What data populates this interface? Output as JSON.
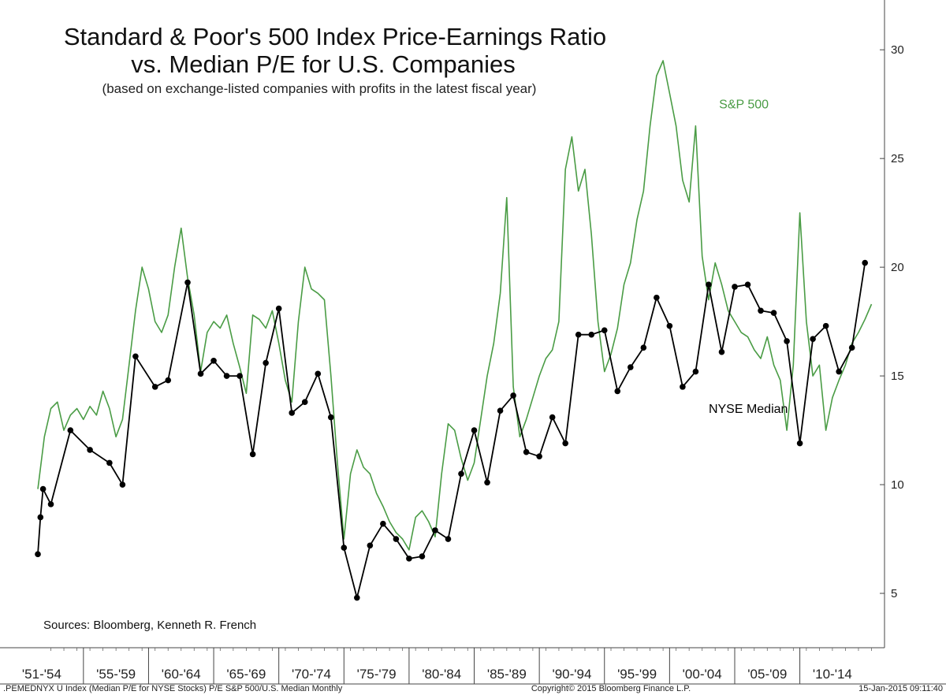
{
  "chart_data": {
    "type": "line",
    "title": "Standard & Poor's 500 Index Price-Earnings Ratio",
    "title_line2": "vs. Median P/E for U.S. Companies",
    "subtitle": "(based on exchange-listed companies with profits in the latest fiscal year)",
    "x_periods": [
      "'51-'54",
      "'55-'59",
      "'60-'64",
      "'65-'69",
      "'70-'74",
      "'75-'79",
      "'80-'84",
      "'85-'89",
      "'90-'94",
      "'95-'99",
      "'00-'04",
      "'05-'09",
      "'10-'14"
    ],
    "xlim": [
      1951,
      2016
    ],
    "ylim": [
      2.5,
      32
    ],
    "yticks": [
      5,
      10,
      15,
      20,
      25,
      30
    ],
    "axis_side": "right",
    "grid": false,
    "series": [
      {
        "name": "S&P 500",
        "color": "#4a9c45",
        "marker": "none",
        "points": [
          [
            1951.0,
            9.8
          ],
          [
            1951.5,
            12.2
          ],
          [
            1952.0,
            13.5
          ],
          [
            1952.5,
            13.8
          ],
          [
            1953.0,
            12.5
          ],
          [
            1953.5,
            13.2
          ],
          [
            1954.0,
            13.5
          ],
          [
            1954.5,
            13.0
          ],
          [
            1955.0,
            13.6
          ],
          [
            1955.5,
            13.2
          ],
          [
            1956.0,
            14.3
          ],
          [
            1956.5,
            13.5
          ],
          [
            1957.0,
            12.2
          ],
          [
            1957.5,
            13.0
          ],
          [
            1958.0,
            15.5
          ],
          [
            1958.5,
            18.0
          ],
          [
            1959.0,
            20.0
          ],
          [
            1959.5,
            19.0
          ],
          [
            1960.0,
            17.5
          ],
          [
            1960.5,
            17.0
          ],
          [
            1961.0,
            17.8
          ],
          [
            1961.5,
            20.0
          ],
          [
            1962.0,
            21.8
          ],
          [
            1962.5,
            19.5
          ],
          [
            1963.0,
            17.8
          ],
          [
            1963.5,
            15.2
          ],
          [
            1964.0,
            17.0
          ],
          [
            1964.5,
            17.5
          ],
          [
            1965.0,
            17.2
          ],
          [
            1965.5,
            17.8
          ],
          [
            1966.0,
            16.5
          ],
          [
            1966.5,
            15.4
          ],
          [
            1967.0,
            14.2
          ],
          [
            1967.5,
            17.8
          ],
          [
            1968.0,
            17.6
          ],
          [
            1968.5,
            17.2
          ],
          [
            1969.0,
            18.0
          ],
          [
            1969.5,
            16.5
          ],
          [
            1970.0,
            14.8
          ],
          [
            1970.5,
            13.8
          ],
          [
            1971.0,
            17.5
          ],
          [
            1971.5,
            20.0
          ],
          [
            1972.0,
            19.0
          ],
          [
            1972.5,
            18.8
          ],
          [
            1973.0,
            18.5
          ],
          [
            1973.5,
            15.0
          ],
          [
            1974.0,
            11.0
          ],
          [
            1974.5,
            7.5
          ],
          [
            1975.0,
            10.5
          ],
          [
            1975.5,
            11.6
          ],
          [
            1976.0,
            10.8
          ],
          [
            1976.5,
            10.5
          ],
          [
            1977.0,
            9.6
          ],
          [
            1977.5,
            9.0
          ],
          [
            1978.0,
            8.3
          ],
          [
            1978.5,
            7.8
          ],
          [
            1979.0,
            7.5
          ],
          [
            1979.5,
            7.0
          ],
          [
            1980.0,
            8.5
          ],
          [
            1980.5,
            8.8
          ],
          [
            1981.0,
            8.3
          ],
          [
            1981.5,
            7.6
          ],
          [
            1982.0,
            10.5
          ],
          [
            1982.5,
            12.8
          ],
          [
            1983.0,
            12.5
          ],
          [
            1983.5,
            11.2
          ],
          [
            1984.0,
            10.2
          ],
          [
            1984.5,
            11.0
          ],
          [
            1985.0,
            13.0
          ],
          [
            1985.5,
            15.0
          ],
          [
            1986.0,
            16.5
          ],
          [
            1986.5,
            18.8
          ],
          [
            1987.0,
            23.2
          ],
          [
            1987.5,
            14.5
          ],
          [
            1988.0,
            12.2
          ],
          [
            1988.5,
            13.0
          ],
          [
            1989.0,
            14.0
          ],
          [
            1989.5,
            15.0
          ],
          [
            1990.0,
            15.8
          ],
          [
            1990.5,
            16.2
          ],
          [
            1991.0,
            17.5
          ],
          [
            1991.5,
            24.5
          ],
          [
            1992.0,
            26.0
          ],
          [
            1992.5,
            23.5
          ],
          [
            1993.0,
            24.5
          ],
          [
            1993.5,
            21.5
          ],
          [
            1994.0,
            17.5
          ],
          [
            1994.5,
            15.2
          ],
          [
            1995.0,
            16.0
          ],
          [
            1995.5,
            17.2
          ],
          [
            1996.0,
            19.2
          ],
          [
            1996.5,
            20.2
          ],
          [
            1997.0,
            22.2
          ],
          [
            1997.5,
            23.5
          ],
          [
            1998.0,
            26.5
          ],
          [
            1998.5,
            28.8
          ],
          [
            1999.0,
            29.5
          ],
          [
            1999.5,
            28.0
          ],
          [
            2000.0,
            26.5
          ],
          [
            2000.5,
            24.0
          ],
          [
            2001.0,
            23.0
          ],
          [
            2001.5,
            26.5
          ],
          [
            2002.0,
            20.5
          ],
          [
            2002.5,
            18.5
          ],
          [
            2003.0,
            20.2
          ],
          [
            2003.5,
            19.2
          ],
          [
            2004.0,
            18.0
          ],
          [
            2004.5,
            17.5
          ],
          [
            2005.0,
            17.0
          ],
          [
            2005.5,
            16.8
          ],
          [
            2006.0,
            16.2
          ],
          [
            2006.5,
            15.8
          ],
          [
            2007.0,
            16.8
          ],
          [
            2007.5,
            15.5
          ],
          [
            2008.0,
            14.8
          ],
          [
            2008.5,
            12.5
          ],
          [
            2009.0,
            15.5
          ],
          [
            2009.5,
            22.5
          ],
          [
            2010.0,
            17.5
          ],
          [
            2010.5,
            15.0
          ],
          [
            2011.0,
            15.5
          ],
          [
            2011.5,
            12.5
          ],
          [
            2012.0,
            14.0
          ],
          [
            2012.5,
            14.8
          ],
          [
            2013.0,
            15.5
          ],
          [
            2013.5,
            16.5
          ],
          [
            2014.0,
            17.0
          ],
          [
            2014.5,
            17.6
          ],
          [
            2015.0,
            18.3
          ]
        ]
      },
      {
        "name": "NYSE Median",
        "color": "#000000",
        "marker": "circle",
        "points": [
          [
            1951.0,
            6.8
          ],
          [
            1951.2,
            8.5
          ],
          [
            1951.4,
            9.8
          ],
          [
            1952.0,
            9.1
          ],
          [
            1953.5,
            12.5
          ],
          [
            1955.0,
            11.6
          ],
          [
            1956.5,
            11.0
          ],
          [
            1957.5,
            10.0
          ],
          [
            1958.5,
            15.9
          ],
          [
            1960.0,
            14.5
          ],
          [
            1961.0,
            14.8
          ],
          [
            1962.5,
            19.3
          ],
          [
            1963.5,
            15.1
          ],
          [
            1964.5,
            15.7
          ],
          [
            1965.5,
            15.0
          ],
          [
            1966.5,
            15.0
          ],
          [
            1967.5,
            11.4
          ],
          [
            1968.5,
            15.6
          ],
          [
            1969.5,
            18.1
          ],
          [
            1970.5,
            13.3
          ],
          [
            1971.5,
            13.8
          ],
          [
            1972.5,
            15.1
          ],
          [
            1973.5,
            13.1
          ],
          [
            1974.5,
            7.1
          ],
          [
            1975.5,
            4.8
          ],
          [
            1976.5,
            7.2
          ],
          [
            1977.5,
            8.2
          ],
          [
            1978.5,
            7.5
          ],
          [
            1979.5,
            6.6
          ],
          [
            1980.5,
            6.7
          ],
          [
            1981.5,
            7.9
          ],
          [
            1982.5,
            7.5
          ],
          [
            1983.5,
            10.5
          ],
          [
            1984.5,
            12.5
          ],
          [
            1985.5,
            10.1
          ],
          [
            1986.5,
            13.4
          ],
          [
            1987.5,
            14.1
          ],
          [
            1988.5,
            11.5
          ],
          [
            1989.5,
            11.3
          ],
          [
            1990.5,
            13.1
          ],
          [
            1991.5,
            11.9
          ],
          [
            1992.5,
            16.9
          ],
          [
            1993.5,
            16.9
          ],
          [
            1994.5,
            17.1
          ],
          [
            1995.5,
            14.3
          ],
          [
            1996.5,
            15.4
          ],
          [
            1997.5,
            16.3
          ],
          [
            1998.5,
            18.6
          ],
          [
            1999.5,
            17.3
          ],
          [
            2000.5,
            14.5
          ],
          [
            2001.5,
            15.2
          ],
          [
            2002.5,
            19.2
          ],
          [
            2003.5,
            16.1
          ],
          [
            2004.5,
            19.1
          ],
          [
            2005.5,
            19.2
          ],
          [
            2006.5,
            18.0
          ],
          [
            2007.5,
            17.9
          ],
          [
            2008.5,
            16.6
          ],
          [
            2009.5,
            11.9
          ],
          [
            2010.5,
            16.7
          ],
          [
            2011.5,
            17.3
          ],
          [
            2012.5,
            15.2
          ],
          [
            2013.5,
            16.3
          ],
          [
            2014.5,
            20.2
          ]
        ]
      }
    ],
    "annotations": [
      {
        "text": "S&P 500",
        "color": "#4a9c45",
        "x": 2003.3,
        "y": 27.3
      },
      {
        "text": "NYSE Median",
        "color": "#000000",
        "x": 2002.5,
        "y": 13.3
      }
    ]
  },
  "source_note": "Sources: Bloomberg, Kenneth R. French",
  "footer": {
    "left": ".PEMEDNYX U Index (Median P/E for NYSE Stocks) P/E S&P 500/U.S. Median  Monthly",
    "center": "Copyright© 2015 Bloomberg Finance L.P.",
    "right": "15-Jan-2015 09:11:40"
  }
}
